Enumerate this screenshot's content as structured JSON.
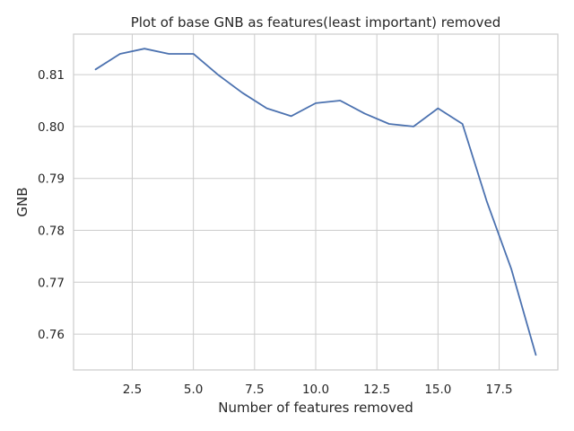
{
  "chart_data": {
    "type": "line",
    "title": "Plot of base GNB as features(least important) removed",
    "xlabel": "Number of features removed",
    "ylabel": "GNB",
    "xlim": [
      0.1,
      19.9
    ],
    "ylim": [
      0.7531,
      0.8178
    ],
    "xticks": [
      2.5,
      5.0,
      7.5,
      10.0,
      12.5,
      15.0,
      17.5
    ],
    "xtick_labels": [
      "2.5",
      "5.0",
      "7.5",
      "10.0",
      "12.5",
      "15.0",
      "17.5"
    ],
    "yticks": [
      0.76,
      0.77,
      0.78,
      0.79,
      0.8,
      0.81
    ],
    "ytick_labels": [
      "0.76",
      "0.77",
      "0.78",
      "0.79",
      "0.80",
      "0.81"
    ],
    "grid": true,
    "series": [
      {
        "color": "#4c72b0",
        "x": [
          1,
          2,
          3,
          4,
          5,
          6,
          7,
          8,
          9,
          10,
          11,
          12,
          13,
          14,
          15,
          16,
          17,
          18,
          19
        ],
        "y": [
          0.811,
          0.814,
          0.815,
          0.814,
          0.814,
          0.81,
          0.8065,
          0.8035,
          0.802,
          0.8045,
          0.805,
          0.8025,
          0.8005,
          0.8,
          0.8035,
          0.8005,
          0.7855,
          0.7725,
          0.756
        ]
      }
    ]
  }
}
